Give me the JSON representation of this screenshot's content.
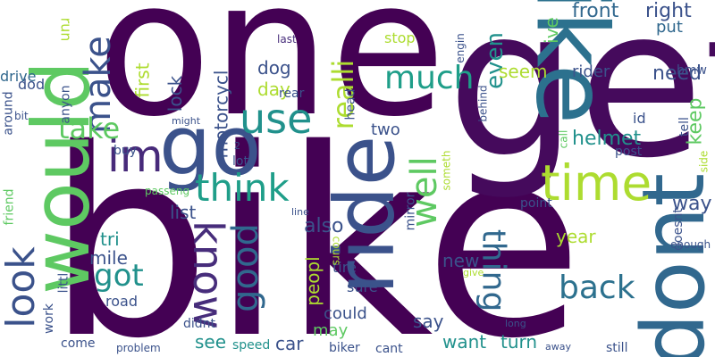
{
  "words": [
    {
      "text": "bike",
      "color": "#440154"
    },
    {
      "text": "one",
      "color": "#440154"
    },
    {
      "text": "get",
      "color": "#450a5c"
    },
    {
      "text": "like",
      "color": "#2c718e"
    },
    {
      "text": "would",
      "color": "#5ec962"
    },
    {
      "text": "dont",
      "color": "#31688e"
    },
    {
      "text": "ride",
      "color": "#3b528b"
    },
    {
      "text": "go",
      "color": "#3b528b"
    },
    {
      "text": "time",
      "color": "#addc30"
    },
    {
      "text": "im",
      "color": "#472a7a"
    },
    {
      "text": "look",
      "color": "#3b528b"
    },
    {
      "text": "use",
      "color": "#21918c"
    },
    {
      "text": "think",
      "color": "#1f9e89"
    },
    {
      "text": "know",
      "color": "#472d7b"
    },
    {
      "text": "make",
      "color": "#3b528b"
    },
    {
      "text": "good",
      "color": "#31688e"
    },
    {
      "text": "well",
      "color": "#5ec962"
    },
    {
      "text": "back",
      "color": "#2c718e"
    },
    {
      "text": "thing",
      "color": "#31688e"
    },
    {
      "text": "much",
      "color": "#1f9e89"
    },
    {
      "text": "take",
      "color": "#5ec962"
    },
    {
      "text": "got",
      "color": "#21918c"
    },
    {
      "text": "realli",
      "color": "#addc30"
    },
    {
      "text": "even",
      "color": "#21918c"
    },
    {
      "text": "front",
      "color": "#31688e"
    },
    {
      "text": "right",
      "color": "#3b528b"
    },
    {
      "text": "need",
      "color": "#3b528b"
    },
    {
      "text": "helmet",
      "color": "#21918c"
    },
    {
      "text": "way",
      "color": "#3b528b"
    },
    {
      "text": "keep",
      "color": "#5ec962"
    },
    {
      "text": "also",
      "color": "#3b528b"
    },
    {
      "text": "list",
      "color": "#3b528b"
    },
    {
      "text": "mile",
      "color": "#3b528b"
    },
    {
      "text": "tri",
      "color": "#21918c"
    },
    {
      "text": "first",
      "color": "#addc30"
    },
    {
      "text": "lock",
      "color": "#3b528b"
    },
    {
      "text": "dog",
      "color": "#3b528b"
    },
    {
      "text": "day",
      "color": "#addc30"
    },
    {
      "text": "motorcycl",
      "color": "#3b528b"
    },
    {
      "text": "seem",
      "color": "#addc30"
    },
    {
      "text": "rider",
      "color": "#3b528b"
    },
    {
      "text": "ive",
      "color": "#5ec962"
    },
    {
      "text": "put",
      "color": "#31688e"
    },
    {
      "text": "new",
      "color": "#3b528b"
    },
    {
      "text": "peopl",
      "color": "#addc30"
    },
    {
      "text": "year",
      "color": "#addc30"
    },
    {
      "text": "say",
      "color": "#3b528b"
    },
    {
      "text": "want",
      "color": "#21918c"
    },
    {
      "text": "turn",
      "color": "#21918c"
    },
    {
      "text": "car",
      "color": "#3b528b"
    },
    {
      "text": "see",
      "color": "#21918c"
    },
    {
      "text": "could",
      "color": "#3b528b"
    },
    {
      "text": "may",
      "color": "#5ec962"
    },
    {
      "text": "sure",
      "color": "#3b528b"
    },
    {
      "text": "tire",
      "color": "#3b528b"
    },
    {
      "text": "road",
      "color": "#3b528b"
    },
    {
      "text": "two",
      "color": "#3b528b"
    },
    {
      "text": "stop",
      "color": "#addc30"
    },
    {
      "text": "drive",
      "color": "#31688e"
    },
    {
      "text": "dod",
      "color": "#3b528b"
    },
    {
      "text": "run",
      "color": "#addc30"
    },
    {
      "text": "anyon",
      "color": "#3b528b"
    },
    {
      "text": "last",
      "color": "#472d7b"
    },
    {
      "text": "rear",
      "color": "#3b528b"
    },
    {
      "text": "head",
      "color": "#3b528b"
    },
    {
      "text": "engin",
      "color": "#3b528b"
    },
    {
      "text": "behind",
      "color": "#3b528b"
    },
    {
      "text": "bmw",
      "color": "#3b528b"
    },
    {
      "text": "id",
      "color": "#3b528b"
    },
    {
      "text": "tell",
      "color": "#3b528b"
    },
    {
      "text": "call",
      "color": "#5ec962"
    },
    {
      "text": "post",
      "color": "#3b528b"
    },
    {
      "text": "side",
      "color": "#addc30"
    },
    {
      "text": "point",
      "color": "#3b528b"
    },
    {
      "text": "mirror",
      "color": "#3b528b"
    },
    {
      "text": "someth",
      "color": "#addc30"
    },
    {
      "text": "around",
      "color": "#3b528b"
    },
    {
      "text": "bit",
      "color": "#3b528b"
    },
    {
      "text": "friend",
      "color": "#5ec962"
    },
    {
      "text": "might",
      "color": "#3b528b"
    },
    {
      "text": "buy",
      "color": "#3b528b"
    },
    {
      "text": "lot",
      "color": "#3b528b"
    },
    {
      "text": "2",
      "color": "#3b528b"
    },
    {
      "text": "passeng",
      "color": "#5ec962"
    },
    {
      "text": "line",
      "color": "#3b528b"
    },
    {
      "text": "littl",
      "color": "#3b528b"
    },
    {
      "text": "work",
      "color": "#3b528b"
    },
    {
      "text": "come",
      "color": "#3b528b"
    },
    {
      "text": "problem",
      "color": "#3b528b"
    },
    {
      "text": "speed",
      "color": "#21918c"
    },
    {
      "text": "biker",
      "color": "#3b528b"
    },
    {
      "text": "cant",
      "color": "#3b528b"
    },
    {
      "text": "didnt",
      "color": "#3b528b"
    },
    {
      "text": "still",
      "color": "#3b528b"
    },
    {
      "text": "away",
      "color": "#3b528b"
    },
    {
      "text": "long",
      "color": "#3b528b"
    },
    {
      "text": "give",
      "color": "#addc30"
    },
    {
      "text": "cours",
      "color": "#addc30"
    },
    {
      "text": "doesnt",
      "color": "#3b528b"
    },
    {
      "text": "enough",
      "color": "#3b528b"
    }
  ]
}
